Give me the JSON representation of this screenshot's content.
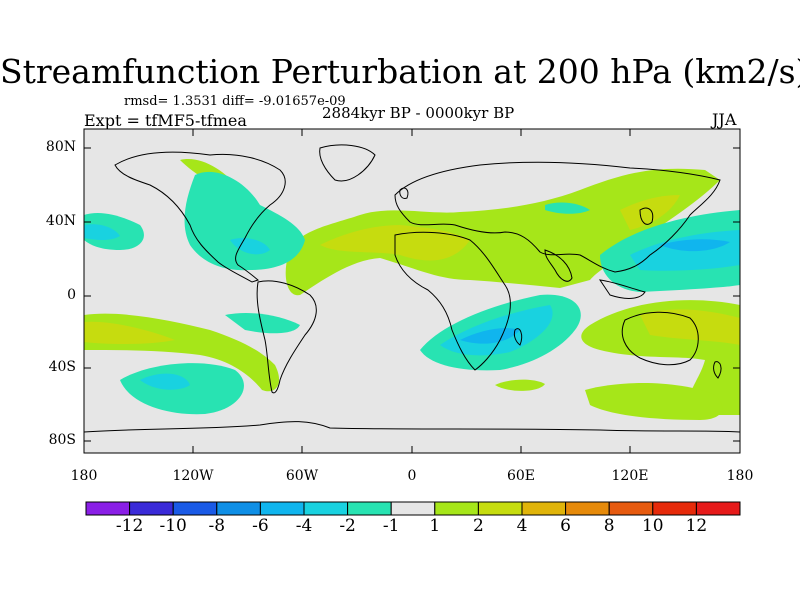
{
  "title": "Streamfunction Perturbation at 200 hPa (km2/s)",
  "stats_line": "rmsd= 1.3531 diff= -9.01657e-09",
  "experiment": "Expt = tfMF5-tfmea",
  "period": "2884kyr BP - 0000kyr BP",
  "season": "JJA",
  "chart_data": {
    "type": "heatmap",
    "variable": "Streamfunction Perturbation at 200 hPa",
    "units": "km2/s",
    "projection": "cylindrical equidistant",
    "lat_ticks": [
      "80N",
      "40N",
      "0",
      "40S",
      "80S"
    ],
    "lon_ticks": [
      "180",
      "120W",
      "60W",
      "0",
      "60E",
      "120E",
      "180"
    ],
    "colorbar": {
      "levels": [
        "-12",
        "-10",
        "-8",
        "-6",
        "-4",
        "-2",
        "-1",
        "1",
        "2",
        "4",
        "6",
        "8",
        "10",
        "12"
      ],
      "colors": [
        "#8a1fe6",
        "#3a2ad8",
        "#1a5ae6",
        "#0f8fe6",
        "#10b5ee",
        "#19d2e0",
        "#28e3b2",
        "#e6e6e6",
        "#a6e619",
        "#c6dc0f",
        "#e0b40a",
        "#e68a0a",
        "#e65a0f",
        "#e62a0a",
        "#e61a1a"
      ]
    },
    "features": [
      {
        "region": "North Pacific east of Japan",
        "lon": 150,
        "lat": 30,
        "value_range": [
          -6,
          -2
        ]
      },
      {
        "region": "Southern Africa / SW Indian Ocean",
        "lon": 40,
        "lat": -30,
        "value_range": [
          -6,
          -2
        ]
      },
      {
        "region": "South Pacific",
        "lon": -140,
        "lat": -45,
        "value_range": [
          -6,
          -2
        ]
      },
      {
        "region": "Central North Pacific",
        "lon": -165,
        "lat": 30,
        "value_range": [
          -4,
          -1
        ]
      },
      {
        "region": "Caribbean / Tropical Atlantic",
        "lon": -75,
        "lat": 25,
        "value_range": [
          -4,
          -1
        ]
      },
      {
        "region": "North Atlantic to Central Asia band",
        "lon": 10,
        "lat": 35,
        "value_range": [
          1,
          4
        ]
      },
      {
        "region": "Australia / SW Pacific",
        "lon": 155,
        "lat": -25,
        "value_range": [
          1,
          4
        ]
      },
      {
        "region": "Subtropical South Pacific",
        "lon": -160,
        "lat": -20,
        "value_range": [
          1,
          4
        ]
      },
      {
        "region": "Southern Indian Ocean",
        "lon": 110,
        "lat": -50,
        "value_range": [
          1,
          2
        ]
      }
    ]
  }
}
